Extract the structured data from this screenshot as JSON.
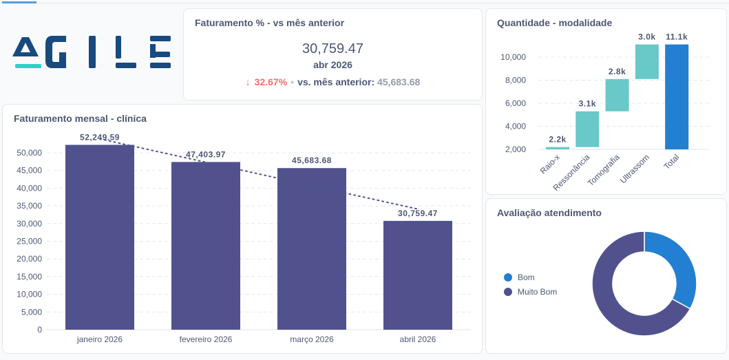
{
  "logo": {
    "text": "AGILE",
    "colors": {
      "letters": "#184a7e",
      "accent": "#2ed0c8"
    }
  },
  "kpi": {
    "title": "Faturamento % - vs mês anterior",
    "value": "30,759.47",
    "period": "abr 2026",
    "change_icon": "arrow-down-icon",
    "change": "32.67%",
    "compare_label": "vs. mês anterior:",
    "compare_value": "45,683.68"
  },
  "colors": {
    "bar": "#51528d",
    "waterfall_step": "#69c8c8",
    "waterfall_total": "#227fd2",
    "donut_bom": "#227fd2",
    "donut_muito_bom": "#51528d",
    "negative": "#ed6e6e"
  },
  "chart_data": [
    {
      "type": "bar",
      "title": "Faturamento mensal - clínica",
      "categories": [
        "janeiro 2026",
        "fevereiro 2026",
        "março 2026",
        "abril 2026"
      ],
      "values": [
        52249.59,
        47403.97,
        45683.68,
        30759.47
      ],
      "data_labels": [
        "52,249.59",
        "47,403.97",
        "45,683.68",
        "30,759.47"
      ],
      "ylim": [
        0,
        50000
      ],
      "yticks": [
        "0",
        "5,000",
        "10,000",
        "15,000",
        "20,000",
        "25,000",
        "30,000",
        "35,000",
        "40,000",
        "45,000",
        "50,000"
      ],
      "trendline": true,
      "grid": true
    },
    {
      "type": "waterfall",
      "title": "Quantidade - modalidade",
      "categories": [
        "Raio-x",
        "Ressonância",
        "Tomografia",
        "Ultrassom",
        "Total"
      ],
      "values": [
        2200,
        3100,
        2800,
        3000,
        11100
      ],
      "data_labels": [
        "2.2k",
        "3.1k",
        "2.8k",
        "3.0k",
        "11.1k"
      ],
      "ylim": [
        2000,
        11100
      ],
      "yticks": [
        "2,000",
        "4,000",
        "6,000",
        "8,000",
        "10,000"
      ],
      "grid": true
    },
    {
      "type": "pie",
      "donut": true,
      "title": "Avaliação atendimento",
      "categories": [
        "Bom",
        "Muito Bom"
      ],
      "values": [
        33,
        67
      ],
      "legend": "left"
    }
  ]
}
